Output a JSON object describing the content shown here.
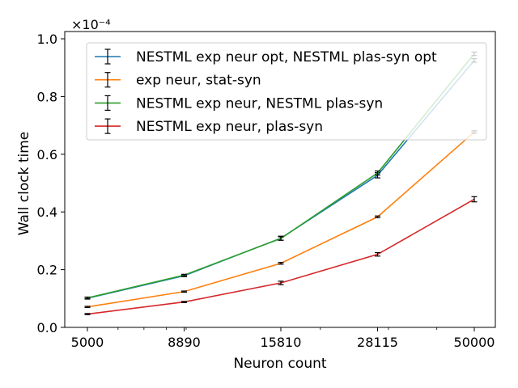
{
  "chart_data": {
    "type": "line",
    "xscale": "log",
    "x": [
      5000,
      8890,
      15810,
      28115,
      50000
    ],
    "xticks": [
      "5000",
      "8890",
      "15810",
      "28115",
      "50000"
    ],
    "xlabel": "Neuron count",
    "ylabel": "Wall clock time",
    "scale_label": "×10⁻⁴",
    "ylim": [
      0,
      1.0
    ],
    "yticks": [
      "0.0",
      "0.2",
      "0.4",
      "0.6",
      "0.8",
      "1.0"
    ],
    "ytick_values": [
      0.0,
      0.2,
      0.4,
      0.6,
      0.8,
      1.0
    ],
    "grid": false,
    "legend_position": "top-right",
    "series": [
      {
        "name": "NESTML exp neur opt, NESTML plas-syn opt",
        "color": "#1f77b4",
        "values": [
          0.101,
          0.179,
          0.309,
          0.527,
          0.925
        ],
        "errors": [
          0.003,
          0.003,
          0.007,
          0.009,
          0.006
        ]
      },
      {
        "name": "exp neur, stat-syn",
        "color": "#ff7f0e",
        "values": [
          0.071,
          0.124,
          0.222,
          0.383,
          0.677
        ],
        "errors": [
          0.002,
          0.002,
          0.003,
          0.003,
          0.004
        ]
      },
      {
        "name": "NESTML exp neur, NESTML plas-syn",
        "color": "#2ca02c",
        "values": [
          0.102,
          0.181,
          0.308,
          0.535,
          0.948
        ],
        "errors": [
          0.003,
          0.003,
          0.006,
          0.007,
          0.006
        ]
      },
      {
        "name": "NESTML exp neur, plas-syn",
        "color": "#d62728",
        "values": [
          0.046,
          0.088,
          0.154,
          0.253,
          0.444
        ],
        "errors": [
          0.002,
          0.002,
          0.006,
          0.006,
          0.009
        ]
      }
    ]
  }
}
